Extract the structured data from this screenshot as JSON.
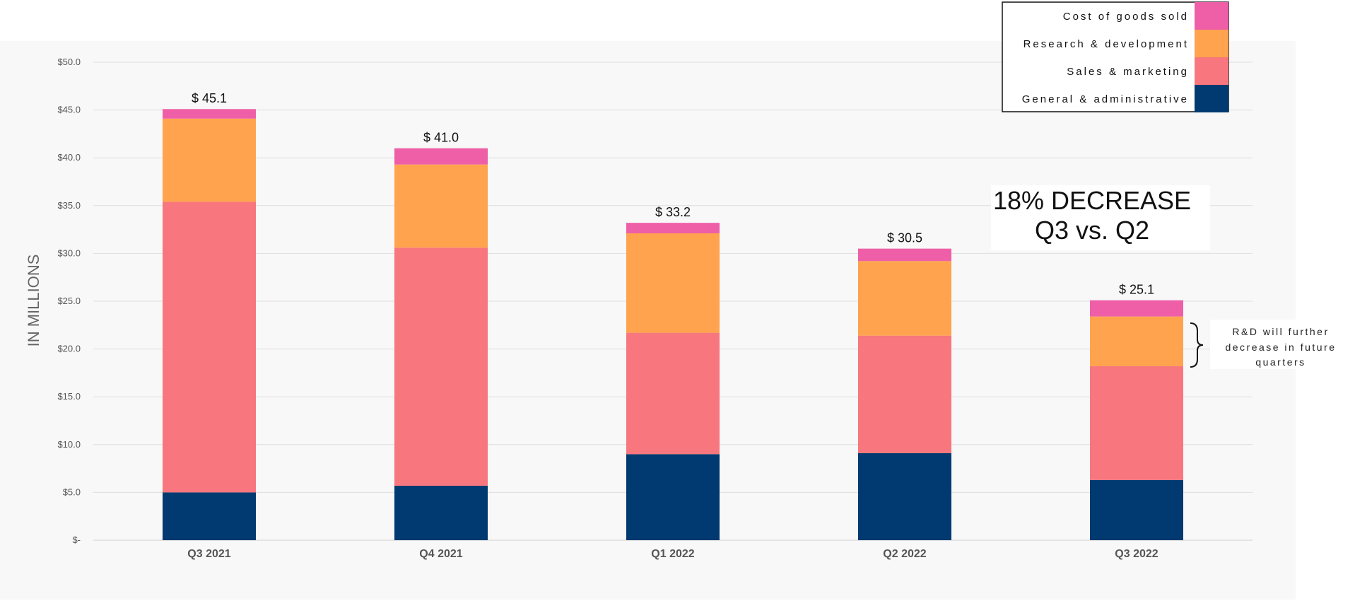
{
  "chart_data": {
    "type": "bar",
    "stacked": true,
    "categories": [
      "Q3 2021",
      "Q4 2021",
      "Q1 2022",
      "Q2 2022",
      "Q3 2022"
    ],
    "series": [
      {
        "name": "General & administrative",
        "color": "#003a70",
        "values": [
          5.0,
          5.7,
          9.0,
          9.1,
          6.3
        ]
      },
      {
        "name": "Sales & marketing",
        "color": "#f8767d",
        "values": [
          30.4,
          24.9,
          12.7,
          12.3,
          11.9
        ]
      },
      {
        "name": "Research & development",
        "color": "#ffa34e",
        "values": [
          8.7,
          8.7,
          10.4,
          7.8,
          5.2
        ]
      },
      {
        "name": "Cost of goods sold",
        "color": "#ef5fa7",
        "values": [
          1.0,
          1.7,
          1.1,
          1.3,
          1.7
        ]
      }
    ],
    "totals": [
      "$ 45.1",
      "$ 41.0",
      "$ 33.2",
      "$ 30.5",
      "$ 25.1"
    ],
    "ylabel": "IN MILLIONS",
    "ylim": [
      0,
      50
    ],
    "yticks": [
      "$-",
      "$5.0",
      "$10.0",
      "$15.0",
      "$20.0",
      "$25.0",
      "$30.0",
      "$35.0",
      "$40.0",
      "$45.0",
      "$50.0"
    ],
    "grid": true,
    "legend_position": "top-right",
    "annotations": {
      "decrease_line1": "18% DECREASE",
      "decrease_line2": "Q3 vs. Q2",
      "rd_note": [
        "R&D will further",
        "decrease in future",
        "quarters"
      ]
    }
  }
}
